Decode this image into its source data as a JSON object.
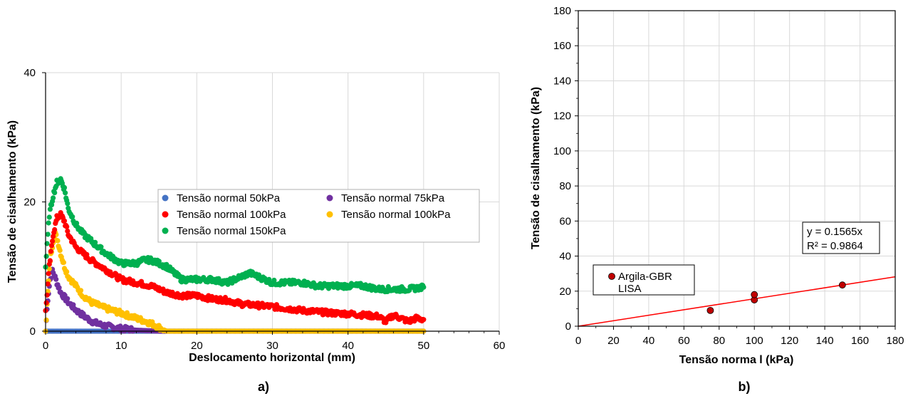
{
  "chart_data": [
    {
      "type": "scatter",
      "caption": "a)",
      "xlabel": "Deslocamento horizontal (mm)",
      "ylabel": "Tensão de cisalhamento (kPa)",
      "xlim": [
        0,
        60
      ],
      "ylim": [
        0,
        40
      ],
      "xticks": [
        "0",
        "10",
        "20",
        "30",
        "40",
        "50",
        "60"
      ],
      "yticks": [
        "0",
        "20",
        "40"
      ],
      "grid": true,
      "legend_position": "center-right",
      "series": [
        {
          "name": "Tensão normal 50kPa",
          "color": "#4472C4",
          "x": [
            0,
            5,
            10,
            15,
            20,
            25,
            30,
            35,
            40,
            45,
            50
          ],
          "y": [
            0,
            0,
            0,
            0,
            0,
            0,
            0,
            0,
            0,
            0,
            0
          ]
        },
        {
          "name": "Tensão normal 75kPa",
          "color": "#7030A0",
          "x": [
            0,
            0.3,
            0.6,
            0.9,
            1.5,
            2,
            3,
            4,
            5,
            6,
            7,
            8,
            10,
            12,
            14,
            15,
            50
          ],
          "y": [
            0,
            5,
            8,
            9.5,
            7.5,
            6,
            4.5,
            3.3,
            2.4,
            1.6,
            1.1,
            0.8,
            0.4,
            0.15,
            0.05,
            0,
            0
          ]
        },
        {
          "name": "Tensão normal 100kPa",
          "color": "#FF0000",
          "x": [
            0,
            0.5,
            1,
            1.5,
            2,
            2.5,
            3,
            4,
            5,
            6,
            8,
            10,
            12,
            14,
            16,
            18,
            20,
            22,
            24,
            26,
            28,
            30,
            32,
            34,
            36,
            38,
            40,
            42,
            44,
            45,
            46,
            47,
            48,
            49,
            50
          ],
          "y": [
            3,
            10,
            15,
            17.5,
            18,
            17,
            15,
            13,
            12,
            11,
            9.5,
            8,
            7.5,
            7,
            6,
            5.5,
            5.5,
            5,
            4.8,
            4.2,
            4,
            3.8,
            3.5,
            3.2,
            3,
            2.8,
            2.7,
            2.5,
            2.3,
            1.5,
            2.5,
            2,
            1.5,
            2,
            1.8
          ]
        },
        {
          "name": "Tensão normal 100kPa",
          "color": "#FFC000",
          "x": [
            0,
            0.3,
            0.6,
            1,
            1.3,
            1.6,
            2,
            2.5,
            3,
            4,
            5,
            6,
            8,
            10,
            12,
            14,
            15,
            16,
            20,
            30,
            40,
            50
          ],
          "y": [
            0,
            6,
            11,
            14,
            15,
            14,
            12,
            10,
            8.5,
            7,
            5.5,
            4.5,
            3.5,
            2.8,
            2,
            1.2,
            0.6,
            0,
            0,
            0,
            0,
            0
          ]
        },
        {
          "name": "Tensão normal 150kPa",
          "color": "#00B050",
          "x": [
            0,
            0.5,
            1,
            1.5,
            2,
            2.5,
            3,
            4,
            5,
            6,
            8,
            10,
            12,
            13,
            14,
            15,
            16,
            17,
            18,
            20,
            22,
            24,
            26,
            27,
            28,
            30,
            32,
            34,
            36,
            38,
            40,
            42,
            44,
            46,
            48,
            50
          ],
          "y": [
            10,
            18,
            21,
            23,
            23.5,
            22,
            19,
            16.5,
            15,
            14,
            12,
            10.5,
            10.5,
            11,
            11,
            10.5,
            10,
            9,
            8,
            8,
            8,
            7.5,
            8.5,
            9,
            8.5,
            7.5,
            7.5,
            7.5,
            7,
            7,
            7,
            7,
            6.5,
            6.5,
            6.5,
            6.8
          ]
        }
      ]
    },
    {
      "type": "scatter",
      "caption": "b)",
      "xlabel": "Tensão norma l (kPa)",
      "ylabel": "Tensão de cisalhamento (kPa)",
      "xlim": [
        0,
        180
      ],
      "ylim": [
        0,
        180
      ],
      "xticks": [
        "0",
        "20",
        "40",
        "60",
        "80",
        "100",
        "120",
        "140",
        "160",
        "180"
      ],
      "yticks": [
        "0",
        "20",
        "40",
        "60",
        "80",
        "100",
        "120",
        "140",
        "160",
        "180"
      ],
      "grid": true,
      "legend_position": "lower-left",
      "series": [
        {
          "name": "Argila-GBR LISA",
          "name_lines": [
            "Argila-GBR",
            "LISA"
          ],
          "color": "#C00000",
          "x": [
            75,
            100,
            100,
            150
          ],
          "y": [
            9,
            15,
            18,
            23.5
          ]
        }
      ],
      "trendline": {
        "slope": 0.1565,
        "x_range": [
          0,
          180
        ],
        "color": "#FF0000",
        "equation": "y = 0.1565x",
        "r2": "R² = 0.9864"
      }
    }
  ]
}
